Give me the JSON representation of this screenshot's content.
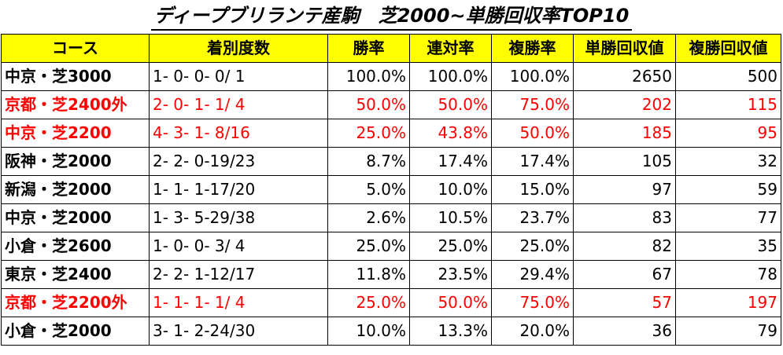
{
  "title": "ディープブリランテ産駒　芝2000~単勝回収率TOP10",
  "colors": {
    "header_bg": "#ffff00",
    "highlight_text": "#ff0000",
    "normal_text": "#000000"
  },
  "headers": [
    "コース",
    "着別度数",
    "勝率",
    "連対率",
    "複勝率",
    "単勝回収値",
    "複勝回収値"
  ],
  "rows": [
    {
      "course": "中京・芝3000",
      "record": "1- 0- 0- 0/ 1",
      "win_rate": "100.0%",
      "quinella_rate": "100.0%",
      "place_rate": "100.0%",
      "win_return": "2650",
      "place_return": "500",
      "highlight": false
    },
    {
      "course": "京都・芝2400外",
      "record": "2- 0- 1- 1/ 4",
      "win_rate": "50.0%",
      "quinella_rate": "50.0%",
      "place_rate": "75.0%",
      "win_return": "202",
      "place_return": "115",
      "highlight": true
    },
    {
      "course": "中京・芝2200",
      "record": "4- 3- 1- 8/16",
      "win_rate": "25.0%",
      "quinella_rate": "43.8%",
      "place_rate": "50.0%",
      "win_return": "185",
      "place_return": "95",
      "highlight": true
    },
    {
      "course": "阪神・芝2000",
      "record": "2- 2- 0-19/23",
      "win_rate": "8.7%",
      "quinella_rate": "17.4%",
      "place_rate": "17.4%",
      "win_return": "105",
      "place_return": "32",
      "highlight": false
    },
    {
      "course": "新潟・芝2000",
      "record": "1- 1- 1-17/20",
      "win_rate": "5.0%",
      "quinella_rate": "10.0%",
      "place_rate": "15.0%",
      "win_return": "97",
      "place_return": "59",
      "highlight": false
    },
    {
      "course": "中京・芝2000",
      "record": "1- 3- 5-29/38",
      "win_rate": "2.6%",
      "quinella_rate": "10.5%",
      "place_rate": "23.7%",
      "win_return": "83",
      "place_return": "77",
      "highlight": false
    },
    {
      "course": "小倉・芝2600",
      "record": "1- 0- 0- 3/ 4",
      "win_rate": "25.0%",
      "quinella_rate": "25.0%",
      "place_rate": "25.0%",
      "win_return": "82",
      "place_return": "35",
      "highlight": false
    },
    {
      "course": "東京・芝2400",
      "record": "2- 2- 1-12/17",
      "win_rate": "11.8%",
      "quinella_rate": "23.5%",
      "place_rate": "29.4%",
      "win_return": "67",
      "place_return": "78",
      "highlight": false
    },
    {
      "course": "京都・芝2200外",
      "record": "1- 1- 1- 1/ 4",
      "win_rate": "25.0%",
      "quinella_rate": "50.0%",
      "place_rate": "75.0%",
      "win_return": "57",
      "place_return": "197",
      "highlight": true
    },
    {
      "course": "小倉・芝2000",
      "record": "3- 1- 2-24/30",
      "win_rate": "10.0%",
      "quinella_rate": "13.3%",
      "place_rate": "20.0%",
      "win_return": "36",
      "place_return": "79",
      "highlight": false
    }
  ]
}
